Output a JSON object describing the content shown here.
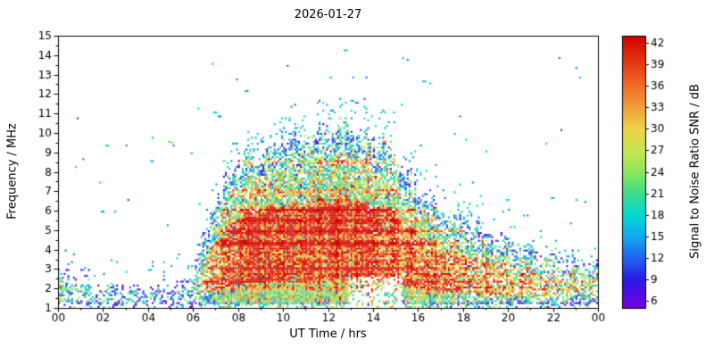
{
  "chart_data": {
    "type": "heatmap",
    "title": "2026-01-27",
    "xlabel": "UT Time / hrs",
    "ylabel": "Frequency / MHz",
    "colorbar_label": "Signal to Noise Ratio SNR / dB",
    "x_tick_labels": [
      "00",
      "02",
      "04",
      "06",
      "08",
      "10",
      "12",
      "14",
      "16",
      "18",
      "20",
      "22",
      "00"
    ],
    "x_tick_hours": [
      0,
      2,
      4,
      6,
      8,
      10,
      12,
      14,
      16,
      18,
      20,
      22,
      24
    ],
    "y_ticks": [
      1,
      2,
      3,
      4,
      5,
      6,
      7,
      8,
      9,
      10,
      11,
      12,
      13,
      14,
      15
    ],
    "colorbar_ticks": [
      6,
      9,
      12,
      15,
      18,
      21,
      24,
      27,
      30,
      33,
      36,
      39,
      42
    ],
    "x_range_hours": [
      0,
      24
    ],
    "y_range_mhz": [
      1,
      15
    ],
    "colorbar_range_db": [
      5,
      43
    ],
    "grid": false,
    "legend": "colorbar-right",
    "colormap_stops": [
      {
        "v": 5,
        "rgb": [
          119,
          0,
          224
        ]
      },
      {
        "v": 9,
        "rgb": [
          42,
          26,
          232
        ]
      },
      {
        "v": 12,
        "rgb": [
          30,
          100,
          240
        ]
      },
      {
        "v": 15,
        "rgb": [
          20,
          170,
          240
        ]
      },
      {
        "v": 18,
        "rgb": [
          0,
          216,
          210
        ]
      },
      {
        "v": 21,
        "rgb": [
          60,
          220,
          140
        ]
      },
      {
        "v": 24,
        "rgb": [
          140,
          230,
          90
        ]
      },
      {
        "v": 27,
        "rgb": [
          200,
          230,
          80
        ]
      },
      {
        "v": 30,
        "rgb": [
          240,
          210,
          72
        ]
      },
      {
        "v": 33,
        "rgb": [
          240,
          160,
          60
        ]
      },
      {
        "v": 36,
        "rgb": [
          240,
          110,
          40
        ]
      },
      {
        "v": 39,
        "rgb": [
          230,
          60,
          20
        ]
      },
      {
        "v": 43,
        "rgb": [
          210,
          0,
          0
        ]
      }
    ],
    "envelope_max_freq_mhz": {
      "hours": [
        0,
        1,
        2,
        3,
        4,
        5,
        6,
        7,
        8,
        9,
        10,
        11,
        12,
        13,
        14,
        15,
        16,
        17,
        18,
        19,
        20,
        21,
        22,
        23,
        24
      ],
      "values": [
        2.9,
        2.7,
        2.5,
        2.4,
        2.3,
        2.4,
        2.9,
        6.8,
        8.6,
        9.4,
        9.8,
        10.0,
        10.3,
        10.6,
        9.9,
        9.2,
        7.3,
        6.3,
        5.9,
        5.2,
        4.7,
        4.3,
        3.9,
        3.6,
        3.4
      ]
    },
    "day_strength": {
      "hours": [
        0,
        1,
        2,
        3,
        4,
        5,
        6,
        7,
        8,
        9,
        10,
        11,
        12,
        13,
        14,
        15,
        16,
        17,
        18,
        19,
        20,
        21,
        22,
        23,
        24
      ],
      "values": [
        0.34,
        0.3,
        0.27,
        0.26,
        0.26,
        0.27,
        0.38,
        0.85,
        0.97,
        1.0,
        1.0,
        1.0,
        1.0,
        1.0,
        0.97,
        0.93,
        0.88,
        0.82,
        0.74,
        0.64,
        0.58,
        0.53,
        0.49,
        0.46,
        0.44
      ]
    },
    "strong_rows": [
      {
        "f": 1.75,
        "t0": 16,
        "t1": 24,
        "b": 0.2
      },
      {
        "f": 2.0,
        "t0": 0,
        "t1": 1.2,
        "b": 0.3
      },
      {
        "f": 2.0,
        "t0": 6.3,
        "t1": 24,
        "b": 0.28
      },
      {
        "f": 2.35,
        "t0": 0,
        "t1": 1.0,
        "b": 0.3
      },
      {
        "f": 2.35,
        "t0": 6.3,
        "t1": 24,
        "b": 0.34
      },
      {
        "f": 2.7,
        "t0": 16,
        "t1": 24,
        "b": 0.24
      },
      {
        "f": 3.0,
        "t0": 6.5,
        "t1": 23.5,
        "b": 0.24
      },
      {
        "f": 3.3,
        "t0": 16,
        "t1": 24,
        "b": 0.18
      },
      {
        "f": 3.6,
        "t0": 16.5,
        "t1": 22,
        "b": 0.2
      },
      {
        "f": 4.3,
        "t0": 6.8,
        "t1": 19,
        "b": 0.22
      },
      {
        "f": 4.95,
        "t0": 6.8,
        "t1": 18.5,
        "b": 0.3
      },
      {
        "f": 5.5,
        "t0": 7.0,
        "t1": 17.5,
        "b": 0.2
      },
      {
        "f": 6.05,
        "t0": 7.2,
        "t1": 16.8,
        "b": 0.34
      },
      {
        "f": 7.0,
        "t0": 7.5,
        "t1": 15.8,
        "b": 0.24
      },
      {
        "f": 8.45,
        "t0": 7.8,
        "t1": 15.2,
        "b": 0.3
      },
      {
        "f": 8.6,
        "t0": 8.0,
        "t1": 15.0,
        "b": 0.2
      }
    ],
    "outlier_points": [
      {
        "t": 0.3,
        "f": 3.9
      },
      {
        "t": 1.9,
        "f": 5.9
      },
      {
        "t": 2.1,
        "f": 9.3
      },
      {
        "t": 3.0,
        "f": 9.3
      },
      {
        "t": 4.1,
        "f": 8.5
      },
      {
        "t": 4.9,
        "f": 9.5
      },
      {
        "t": 5.0,
        "f": 9.45,
        "snr": 28
      },
      {
        "t": 5.1,
        "f": 9.3
      },
      {
        "t": 5.9,
        "f": 8.9
      },
      {
        "t": 6.2,
        "f": 11.2
      },
      {
        "t": 6.9,
        "f": 11.0
      },
      {
        "t": 7.1,
        "f": 10.8
      },
      {
        "t": 8.3,
        "f": 12.1
      },
      {
        "t": 12.7,
        "f": 14.2
      },
      {
        "t": 13.0,
        "f": 11.6
      },
      {
        "t": 13.2,
        "f": 11.5
      },
      {
        "t": 14.9,
        "f": 11.0
      },
      {
        "t": 15.3,
        "f": 13.8
      },
      {
        "t": 15.5,
        "f": 13.7
      },
      {
        "t": 16.2,
        "f": 12.6
      },
      {
        "t": 16.5,
        "f": 12.5
      },
      {
        "t": 17.6,
        "f": 9.9
      },
      {
        "t": 18.1,
        "f": 9.6
      },
      {
        "t": 18.4,
        "f": 7.4
      },
      {
        "t": 19.9,
        "f": 6.5
      },
      {
        "t": 21.9,
        "f": 6.6
      },
      {
        "t": 23.0,
        "f": 6.5
      },
      {
        "t": 23.4,
        "f": 6.4
      }
    ]
  },
  "layout_colors": {
    "axis": "#000000",
    "background": "#ffffff",
    "text": "#000000"
  }
}
